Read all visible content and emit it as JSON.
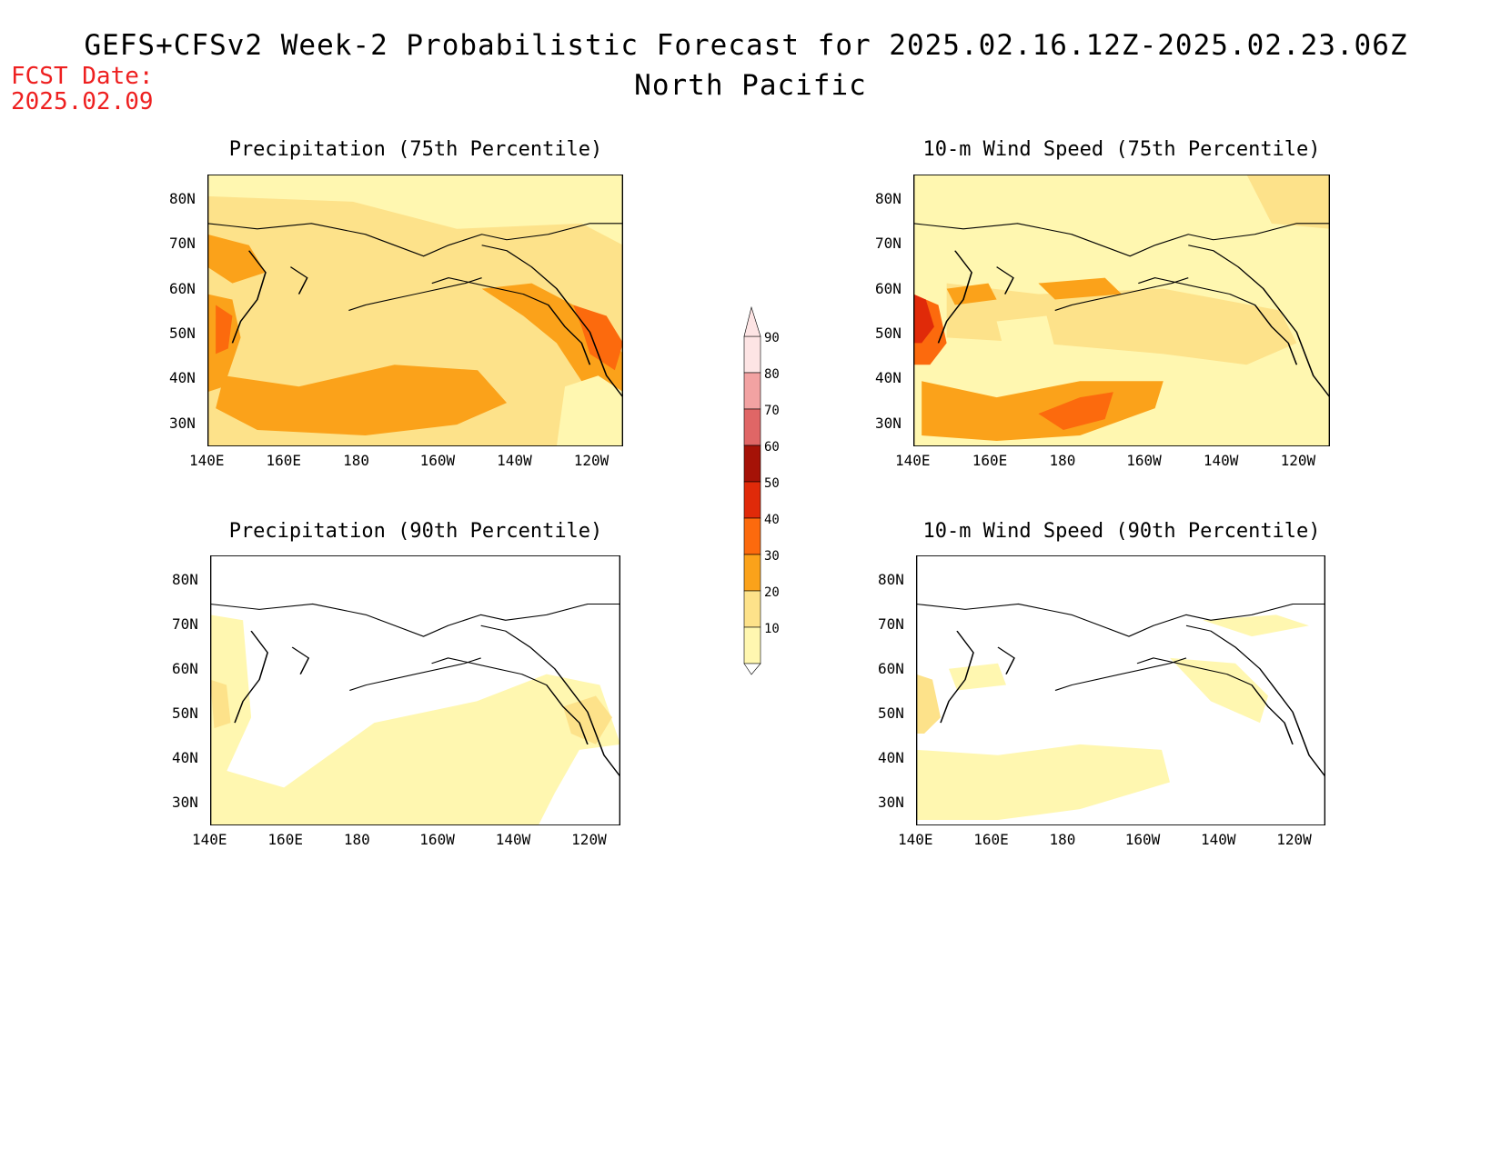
{
  "header": {
    "title": "GEFS+CFSv2 Week-2 Probabilistic Forecast for 2025.02.16.12Z-2025.02.23.06Z",
    "subtitle": "North Pacific",
    "fcst_label": "FCST Date:",
    "fcst_date": "2025.02.09"
  },
  "colors": {
    "text": "#000000",
    "fcst": "#ee2020",
    "scale": [
      "#fff7b0",
      "#fde28a",
      "#fba21a",
      "#fc6a0d",
      "#e02a09",
      "#a51207",
      "#e06666",
      "#f2a2a2",
      "#fde4e4"
    ]
  },
  "panels": [
    {
      "title": "Precipitation (75th Percentile)",
      "variable": "precipitation",
      "percentile": "75th"
    },
    {
      "title": "10-m Wind Speed (75th Percentile)",
      "variable": "10-m wind speed",
      "percentile": "75th"
    },
    {
      "title": "Precipitation (90th Percentile)",
      "variable": "precipitation",
      "percentile": "90th"
    },
    {
      "title": "10-m Wind Speed (90th Percentile)",
      "variable": "10-m wind speed",
      "percentile": "90th"
    }
  ],
  "axes": {
    "lon_labels": [
      "140E",
      "160E",
      "180",
      "160W",
      "140W",
      "120W"
    ],
    "lat_labels": [
      "80N",
      "70N",
      "60N",
      "50N",
      "40N",
      "30N"
    ]
  },
  "colorbar": {
    "labels": [
      "90",
      "80",
      "70",
      "60",
      "50",
      "40",
      "30",
      "20",
      "10"
    ]
  }
}
